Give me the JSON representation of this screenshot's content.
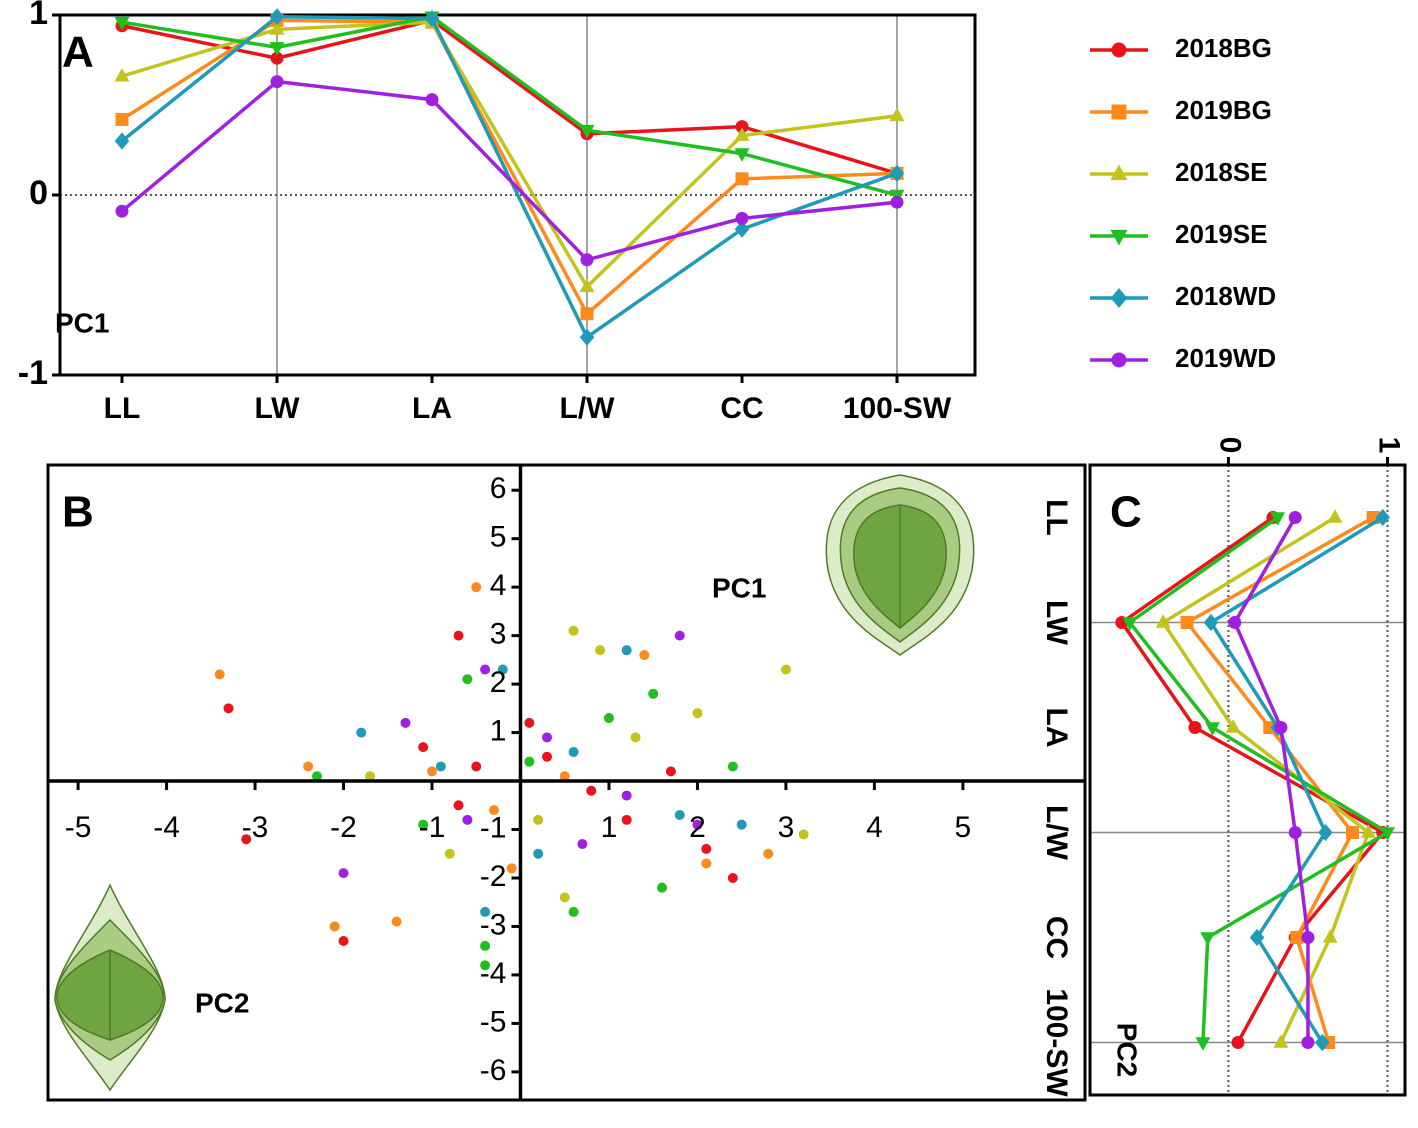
{
  "chart_data": [
    {
      "type": "line",
      "panel": "A",
      "annotation": "PC1",
      "categories": [
        "LL",
        "LW",
        "LA",
        "L/W",
        "CC",
        "100-SW"
      ],
      "ylim": [
        -1,
        1
      ],
      "yticks": [
        -1,
        0,
        1
      ],
      "series": [
        {
          "name": "2018BG",
          "color": "#e8141c",
          "marker": "circle",
          "values": [
            0.94,
            0.76,
            0.97,
            0.34,
            0.38,
            0.12
          ]
        },
        {
          "name": "2019BG",
          "color": "#ff8a1c",
          "marker": "square",
          "values": [
            0.42,
            0.97,
            0.96,
            -0.66,
            0.09,
            0.12
          ]
        },
        {
          "name": "2018SE",
          "color": "#c3c31e",
          "marker": "triangle",
          "values": [
            0.66,
            0.92,
            0.96,
            -0.51,
            0.33,
            0.44
          ]
        },
        {
          "name": "2019SE",
          "color": "#1fbf1f",
          "marker": "triangle-down",
          "values": [
            0.96,
            0.82,
            0.99,
            0.36,
            0.23,
            0.0
          ]
        },
        {
          "name": "2018WD",
          "color": "#1f9ab8",
          "marker": "diamond",
          "values": [
            0.3,
            0.99,
            0.98,
            -0.79,
            -0.19,
            0.12
          ]
        },
        {
          "name": "2019WD",
          "color": "#a020e0",
          "marker": "circle",
          "values": [
            -0.09,
            0.63,
            0.53,
            -0.36,
            -0.13,
            -0.04
          ]
        }
      ]
    },
    {
      "type": "scatter",
      "panel": "B",
      "annotations": [
        "PC1",
        "PC2"
      ],
      "xlim": [
        -5.34,
        6.38
      ],
      "ylim": [
        -6.58,
        6.52
      ],
      "xticks": [
        -5,
        -4,
        -3,
        -2,
        -1,
        1,
        2,
        3,
        4,
        5
      ],
      "yticks": [
        -6,
        -5,
        -4,
        -3,
        -2,
        -1,
        1,
        2,
        3,
        4,
        5,
        6
      ],
      "series": [
        {
          "color": "#e8141c",
          "x": [
            -3.3,
            -3.1,
            -2.0,
            -1.1,
            -0.5,
            0.3,
            0.8,
            1.2,
            2.1,
            2.4,
            1.7,
            -0.7,
            0.1,
            -0.7
          ],
          "values": [
            1.5,
            -1.2,
            -3.3,
            0.7,
            0.3,
            0.5,
            -0.2,
            -0.8,
            -1.4,
            -2.0,
            0.2,
            -0.5,
            1.2,
            3.0
          ]
        },
        {
          "color": "#ff8a1c",
          "x": [
            -3.4,
            -2.1,
            -1.4,
            -0.5,
            2.8,
            1.4,
            -0.3,
            0.5,
            -1.0,
            2.1,
            -2.4,
            -0.1
          ],
          "values": [
            2.2,
            -3.0,
            -2.9,
            4.0,
            -1.5,
            2.6,
            -0.6,
            0.1,
            0.2,
            -1.7,
            0.3,
            -1.8
          ]
        },
        {
          "color": "#c3c31e",
          "x": [
            3.0,
            3.2,
            0.6,
            0.5,
            0.9,
            -1.7,
            0.2,
            1.3,
            -0.8,
            2.0
          ],
          "values": [
            2.3,
            -1.1,
            3.1,
            -2.4,
            2.7,
            0.1,
            -0.8,
            0.9,
            -1.5,
            1.4
          ]
        },
        {
          "color": "#1fbf1f",
          "x": [
            -0.4,
            -0.4,
            0.6,
            1.6,
            1.5,
            2.4,
            -2.3,
            0.1,
            -1.1,
            1.0,
            -0.6
          ],
          "values": [
            -3.4,
            -3.8,
            -2.7,
            -2.2,
            1.8,
            0.3,
            0.1,
            0.4,
            -0.9,
            1.3,
            2.1
          ]
        },
        {
          "color": "#1f9ab8",
          "x": [
            -0.4,
            1.2,
            2.5,
            0.2,
            -1.8,
            0.6,
            1.8,
            -0.9,
            -0.2
          ],
          "values": [
            -2.7,
            2.7,
            -0.9,
            -1.5,
            1.0,
            0.6,
            -0.7,
            0.3,
            2.3
          ]
        },
        {
          "color": "#a020e0",
          "x": [
            1.8,
            -0.4,
            2.0,
            -2.0,
            0.7,
            -1.3,
            0.3,
            1.2,
            -0.6
          ],
          "values": [
            3.0,
            2.3,
            -0.9,
            -1.9,
            -1.3,
            1.2,
            0.9,
            -0.3,
            -0.8
          ]
        }
      ]
    },
    {
      "type": "line",
      "orientation": "horizontal",
      "panel": "C",
      "annotation": "PC2",
      "categories": [
        "LL",
        "LW",
        "LA",
        "L/W",
        "CC",
        "100-SW"
      ],
      "xlim": [
        -0.87,
        1.11
      ],
      "xticks": [
        0,
        1
      ],
      "series": [
        {
          "color": "#e8141c",
          "marker": "circle",
          "values": [
            0.28,
            -0.67,
            -0.21,
            0.97,
            0.42,
            0.06
          ]
        },
        {
          "color": "#ff8a1c",
          "marker": "square",
          "values": [
            0.91,
            -0.26,
            0.26,
            0.78,
            0.43,
            0.63
          ]
        },
        {
          "color": "#c3c31e",
          "marker": "triangle",
          "values": [
            0.67,
            -0.41,
            0.03,
            0.88,
            0.64,
            0.33
          ]
        },
        {
          "color": "#1fbf1f",
          "marker": "triangle-down",
          "values": [
            0.31,
            -0.62,
            -0.1,
            1.0,
            -0.13,
            -0.16
          ]
        },
        {
          "color": "#1f9ab8",
          "marker": "diamond",
          "values": [
            0.97,
            -0.11,
            0.31,
            0.61,
            0.18,
            0.59
          ]
        },
        {
          "color": "#a020e0",
          "marker": "circle",
          "values": [
            0.42,
            0.04,
            0.33,
            0.42,
            0.5,
            0.5
          ]
        }
      ]
    }
  ]
}
